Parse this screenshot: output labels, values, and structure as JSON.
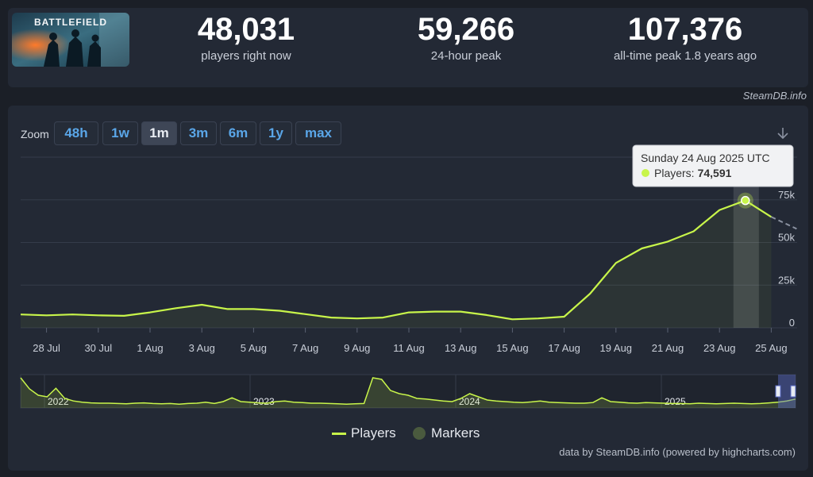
{
  "stats": {
    "current": {
      "value": "48,031",
      "label": "players right now"
    },
    "peak24": {
      "value": "59,266",
      "label": "24-hour peak"
    },
    "alltime": {
      "value": "107,376",
      "label": "all-time peak 1.8 years ago"
    }
  },
  "game_logo_text": "BATTLEFIELD",
  "credit_top": "SteamDB.info",
  "zoom": {
    "label": "Zoom",
    "buttons": [
      "48h",
      "1w",
      "1m",
      "3m",
      "6m",
      "1y",
      "max"
    ],
    "active": "1m"
  },
  "tooltip": {
    "date": "Sunday 24 Aug 2025 UTC",
    "series_label": "Players:",
    "value": "74,591"
  },
  "legend": {
    "players": "Players",
    "markers": "Markers"
  },
  "credit_bottom": "data by SteamDB.info (powered by highcharts.com)",
  "colors": {
    "line": "#c8f54a",
    "grid": "#353c4a",
    "marker": "#4a5a3e"
  },
  "chart_data": [
    {
      "type": "line",
      "x": [
        "27 Jul",
        "28 Jul",
        "29 Jul",
        "30 Jul",
        "31 Jul",
        "1 Aug",
        "2 Aug",
        "3 Aug",
        "4 Aug",
        "5 Aug",
        "6 Aug",
        "7 Aug",
        "8 Aug",
        "9 Aug",
        "10 Aug",
        "11 Aug",
        "12 Aug",
        "13 Aug",
        "14 Aug",
        "15 Aug",
        "16 Aug",
        "17 Aug",
        "18 Aug",
        "19 Aug",
        "20 Aug",
        "21 Aug",
        "22 Aug",
        "23 Aug",
        "24 Aug",
        "25 Aug"
      ],
      "series": [
        {
          "name": "Players",
          "values": [
            7800,
            7300,
            7800,
            7300,
            7000,
            9000,
            11500,
            13500,
            11000,
            11000,
            10000,
            8000,
            6000,
            5500,
            6000,
            9000,
            9500,
            9500,
            7500,
            5000,
            5500,
            6500,
            20000,
            38000,
            46500,
            50500,
            56500,
            69000,
            74591,
            65000
          ]
        }
      ],
      "projection": {
        "from": "25 Aug",
        "to_value": 58000
      },
      "highlight": "24 Aug",
      "xticks": [
        "28 Jul",
        "30 Jul",
        "1 Aug",
        "3 Aug",
        "5 Aug",
        "7 Aug",
        "9 Aug",
        "11 Aug",
        "13 Aug",
        "15 Aug",
        "17 Aug",
        "19 Aug",
        "21 Aug",
        "23 Aug",
        "25 Aug"
      ],
      "yticks": [
        "0",
        "25k",
        "50k",
        "75k"
      ],
      "ylim": [
        0,
        100000
      ],
      "grid": true
    },
    {
      "type": "area",
      "role": "navigator",
      "year_labels": [
        "2022",
        "2023",
        "2024",
        "2025"
      ],
      "values": [
        95,
        60,
        40,
        35,
        62,
        30,
        22,
        18,
        16,
        15,
        15,
        14,
        13,
        15,
        16,
        14,
        13,
        14,
        12,
        14,
        15,
        18,
        14,
        20,
        32,
        20,
        18,
        16,
        15,
        20,
        22,
        18,
        17,
        15,
        15,
        14,
        13,
        12,
        13,
        14,
        95,
        90,
        55,
        45,
        40,
        30,
        28,
        25,
        22,
        20,
        30,
        45,
        35,
        25,
        22,
        20,
        18,
        17,
        19,
        22,
        18,
        17,
        16,
        15,
        15,
        17,
        32,
        20,
        18,
        16,
        15,
        17,
        16,
        15,
        14,
        14,
        13,
        15,
        14,
        13,
        14,
        15,
        14,
        13,
        14,
        16,
        18,
        22,
        28
      ],
      "ylim": [
        0,
        107376
      ]
    }
  ]
}
